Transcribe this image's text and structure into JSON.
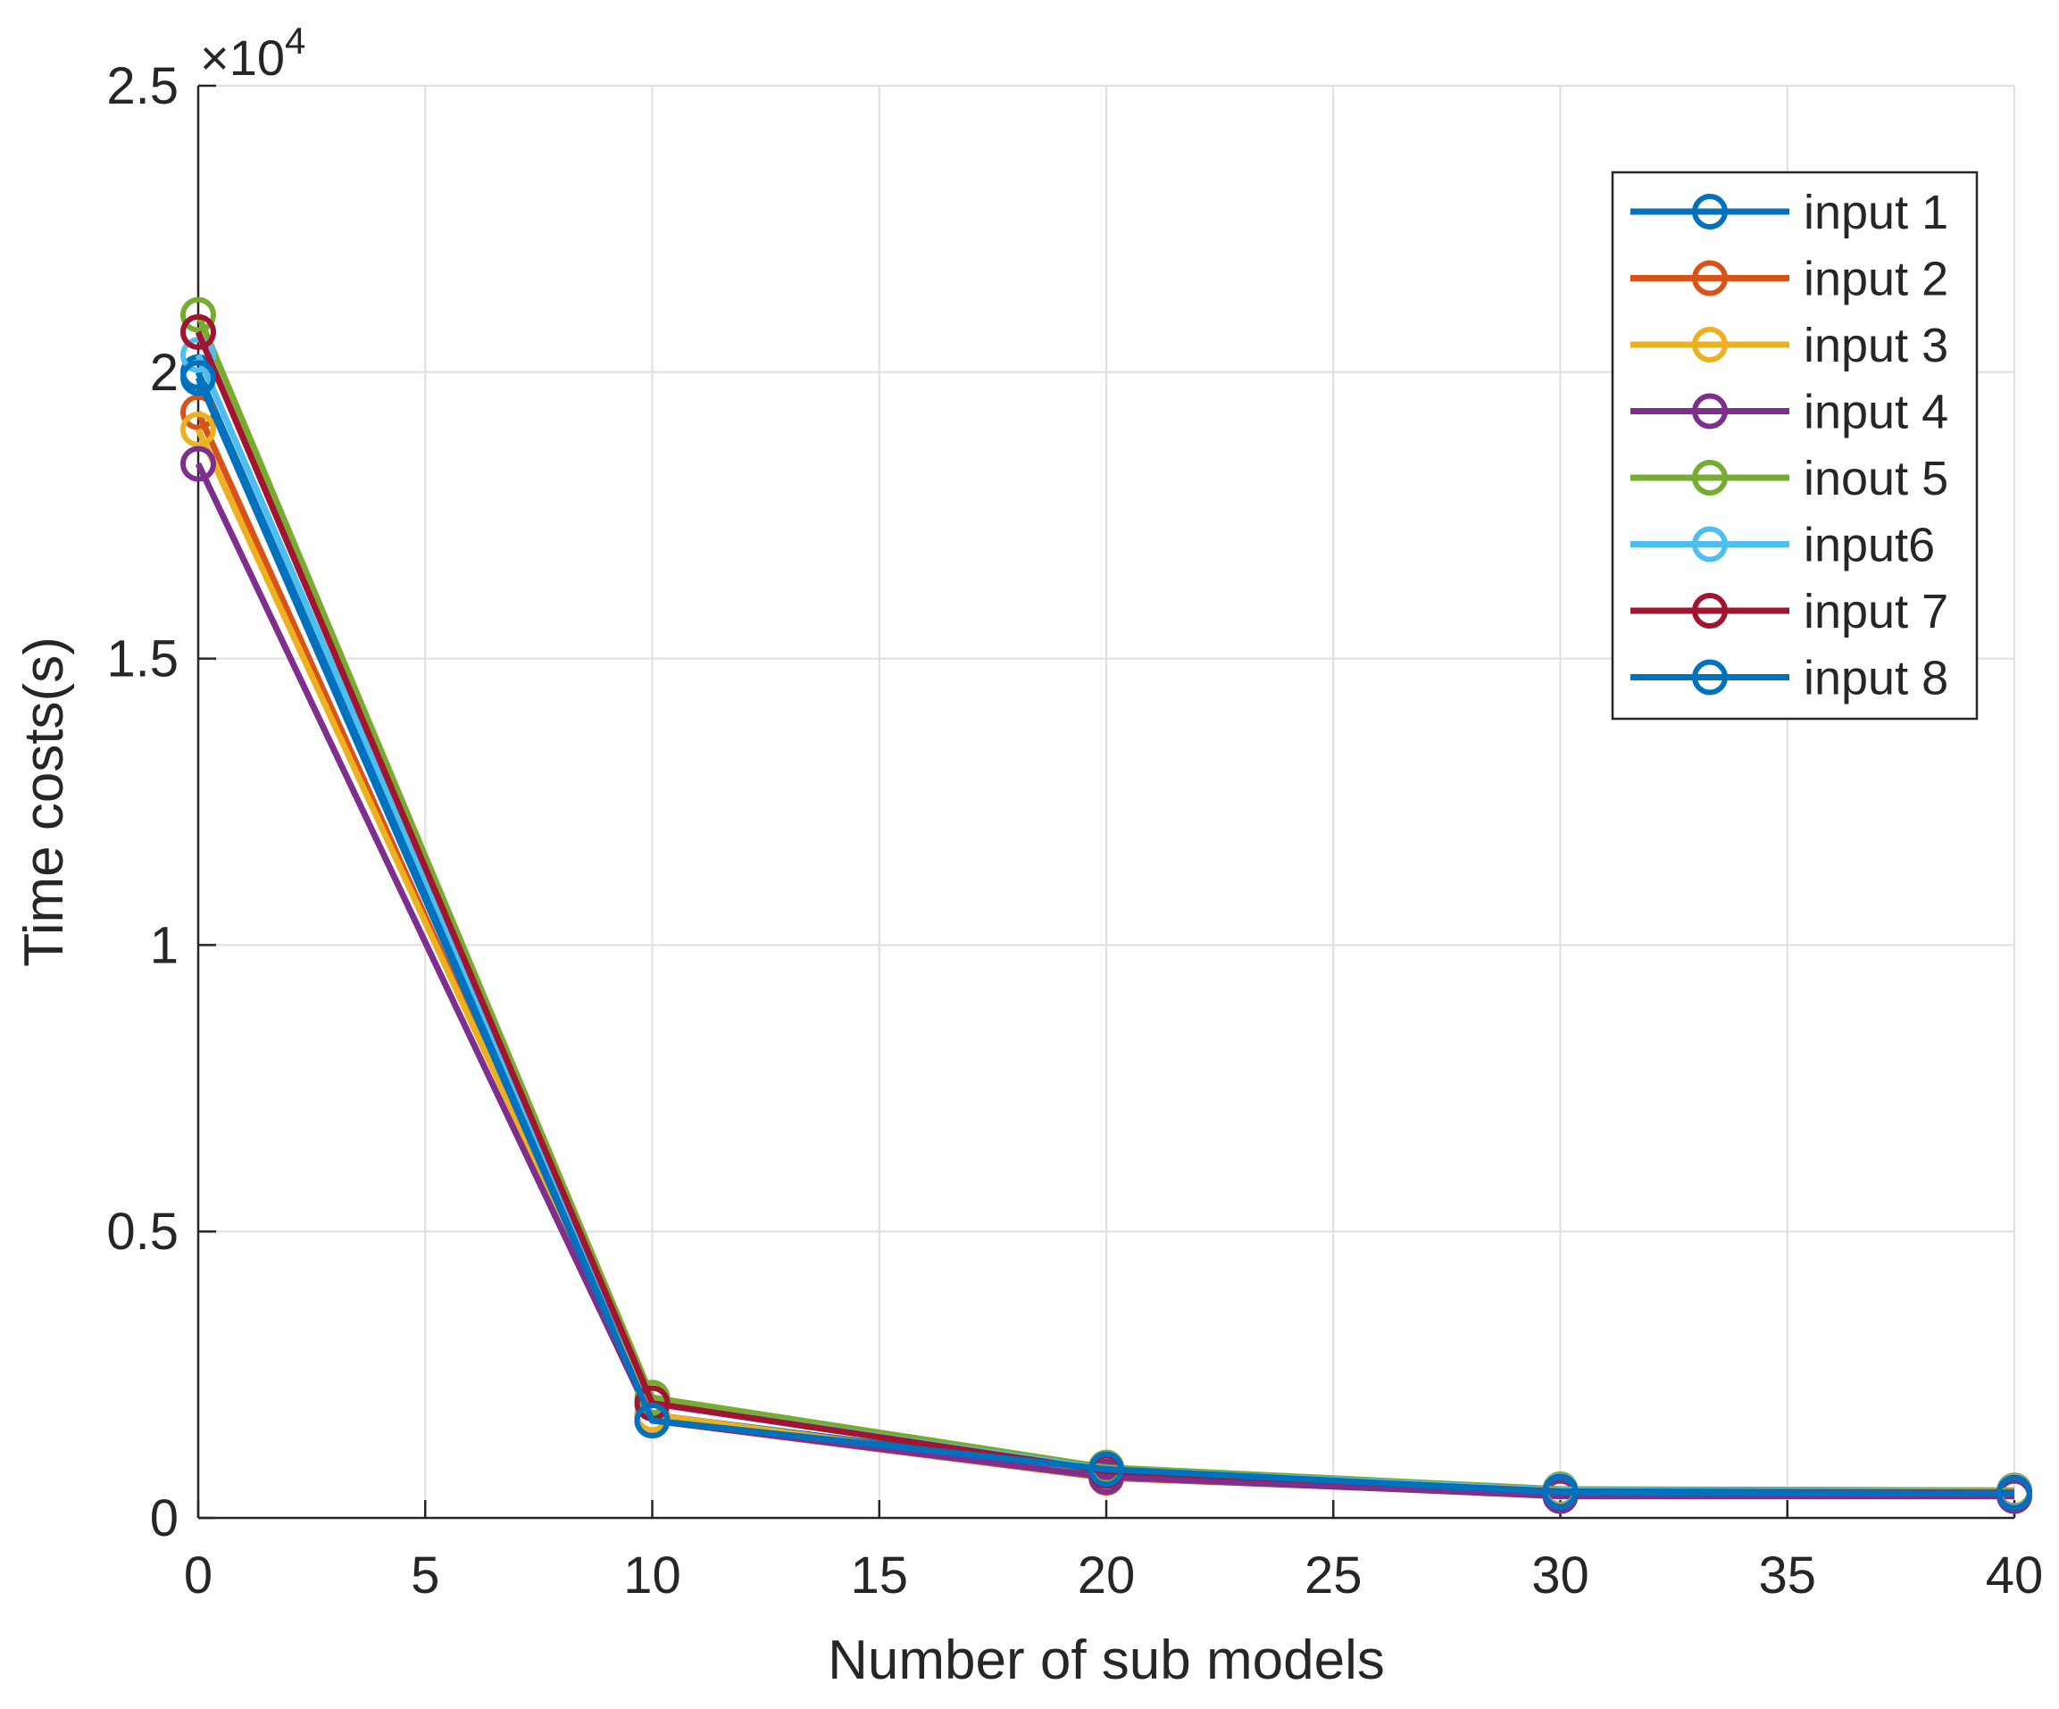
{
  "chart_data": {
    "type": "line",
    "title": "",
    "xlabel": "Number of sub models",
    "ylabel": "Time costs(s)",
    "exponent_label": "×10",
    "exponent_power": "4",
    "xlim": [
      0,
      40
    ],
    "ylim": [
      0,
      2.5
    ],
    "xticks": [
      "0",
      "5",
      "10",
      "15",
      "20",
      "25",
      "30",
      "35",
      "40"
    ],
    "yticks": [
      "0",
      "0.5",
      "1",
      "1.5",
      "2",
      "2.5"
    ],
    "xtick_values": [
      0,
      5,
      10,
      15,
      20,
      25,
      30,
      35,
      40
    ],
    "ytick_values": [
      0,
      0.5,
      1,
      1.5,
      2,
      2.5
    ],
    "grid": true,
    "legend_position": "top-right",
    "x": [
      0,
      10,
      20,
      30,
      40
    ],
    "series": [
      {
        "name": "input 1",
        "color": "#0072BD",
        "values": [
          2.0,
          0.18,
          0.08,
          0.045,
          0.045
        ]
      },
      {
        "name": "input 2",
        "color": "#D95319",
        "values": [
          1.93,
          0.17,
          0.07,
          0.04,
          0.04
        ]
      },
      {
        "name": "input 3",
        "color": "#EDB120",
        "values": [
          1.9,
          0.18,
          0.075,
          0.042,
          0.042
        ]
      },
      {
        "name": "input 4",
        "color": "#7E2F8E",
        "values": [
          1.84,
          0.17,
          0.072,
          0.038,
          0.038
        ]
      },
      {
        "name": "inout 5",
        "color": "#77AC30",
        "values": [
          2.1,
          0.21,
          0.088,
          0.05,
          0.048
        ]
      },
      {
        "name": "input6",
        "color": "#4DBEEE",
        "values": [
          2.03,
          0.2,
          0.085,
          0.048,
          0.046
        ]
      },
      {
        "name": "input 7",
        "color": "#A2142F",
        "values": [
          2.07,
          0.2,
          0.082,
          0.046,
          0.044
        ]
      },
      {
        "name": "input 8",
        "color": "#0072BD",
        "values": [
          1.99,
          0.17,
          0.085,
          0.045,
          0.043
        ]
      }
    ]
  }
}
